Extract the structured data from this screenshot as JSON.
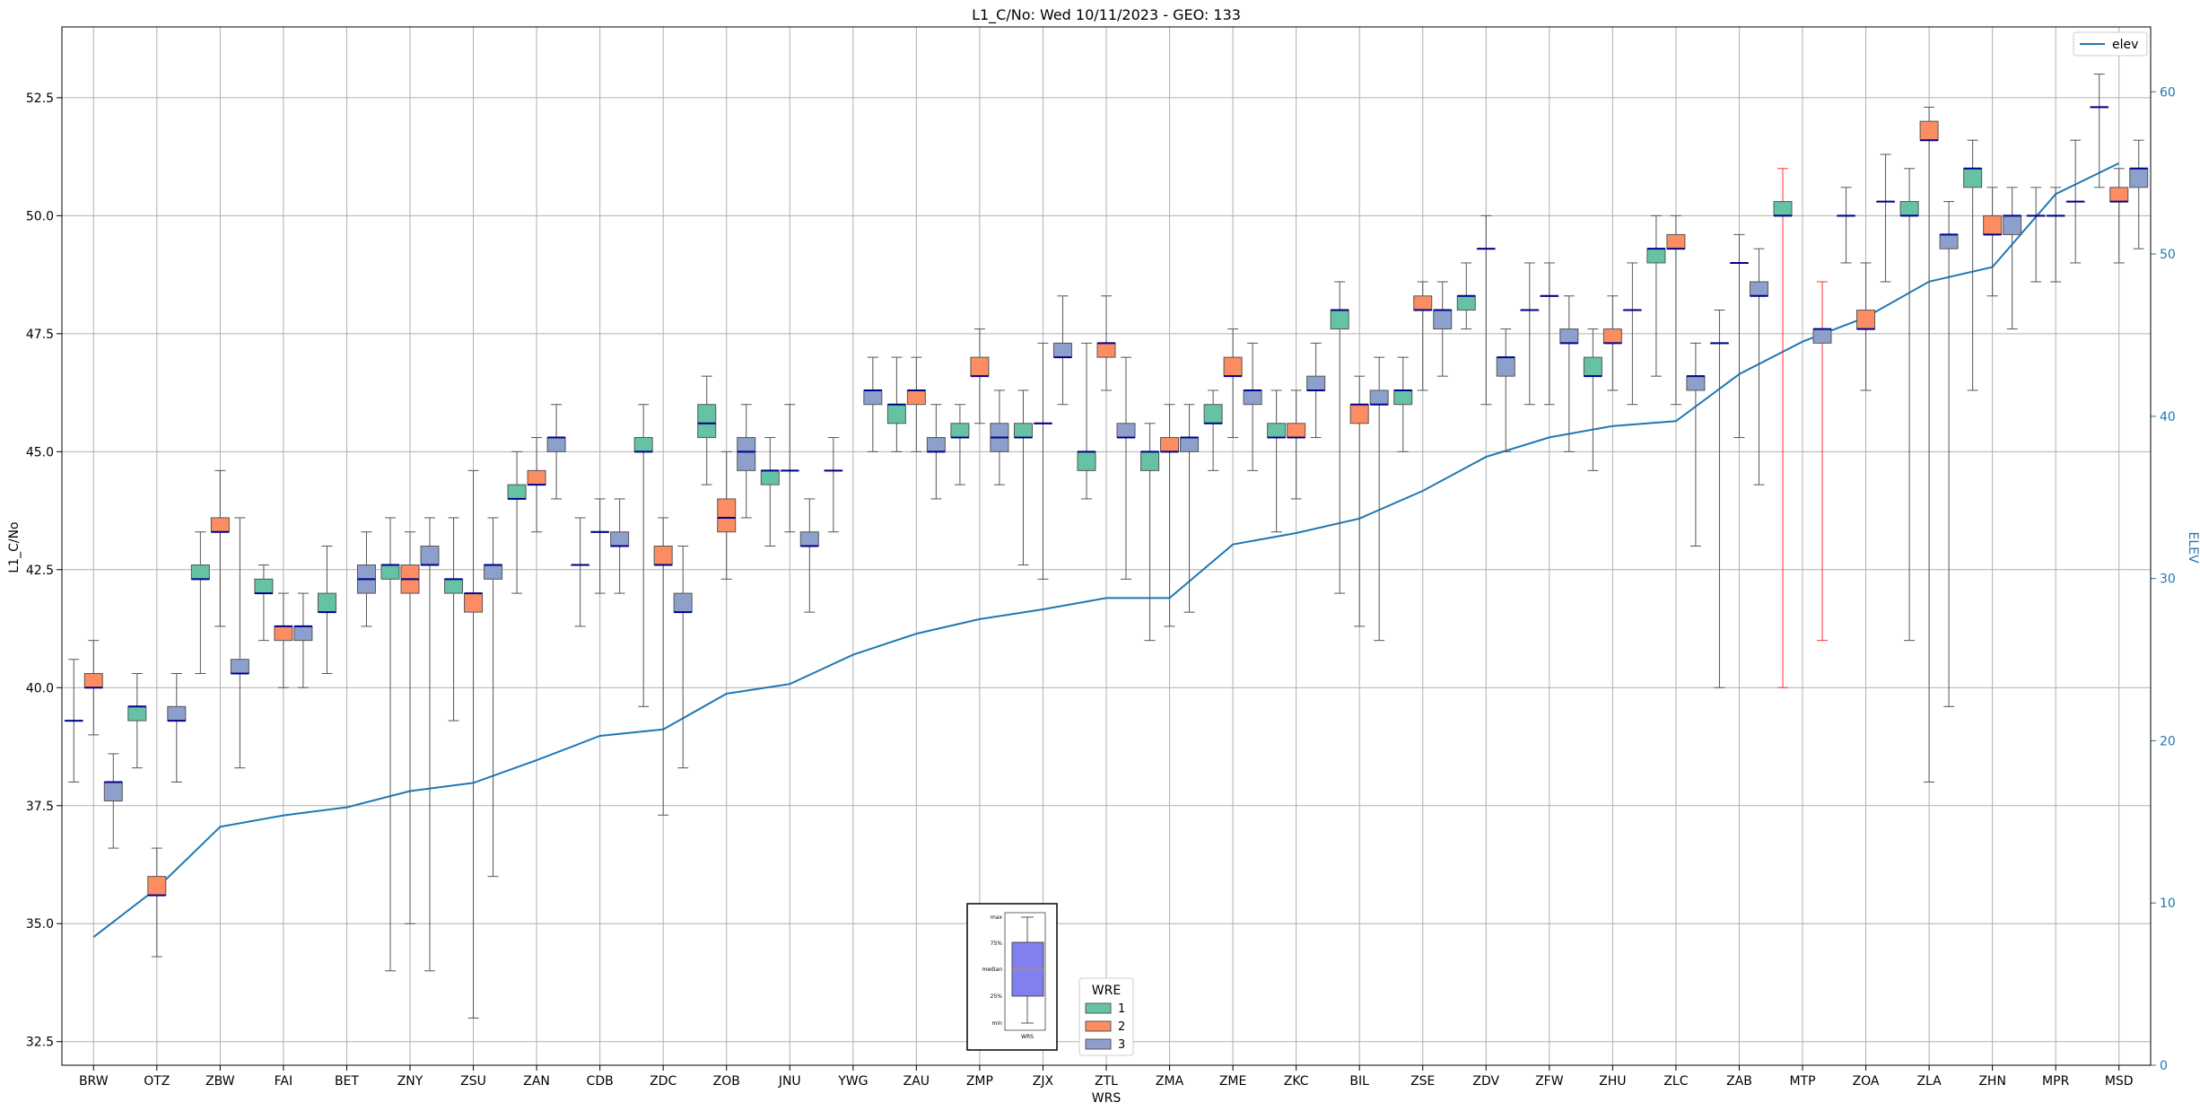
{
  "chart_data": {
    "type": "box",
    "title": "L1_C/No: Wed 10/11/2023 - GEO: 133",
    "xlabel": "WRS",
    "ylabel": "L1_C/No",
    "y2label": "ELEV",
    "ylim": [
      32.0,
      54.0
    ],
    "y2lim": [
      0,
      64
    ],
    "yticks": [
      "32.5",
      "35.0",
      "37.5",
      "40.0",
      "42.5",
      "45.0",
      "47.5",
      "50.0",
      "52.5"
    ],
    "y2ticks": [
      "0",
      "10",
      "20",
      "30",
      "40",
      "50",
      "60"
    ],
    "grid": true,
    "categories": [
      "BRW",
      "OTZ",
      "ZBW",
      "FAI",
      "BET",
      "ZNY",
      "ZSU",
      "ZAN",
      "CDB",
      "ZDC",
      "ZOB",
      "JNU",
      "YWG",
      "ZAU",
      "ZMP",
      "ZJX",
      "ZTL",
      "ZMA",
      "ZME",
      "ZKC",
      "BIL",
      "ZSE",
      "ZDV",
      "ZFW",
      "ZHU",
      "ZLC",
      "ZAB",
      "MTP",
      "ZOA",
      "ZLA",
      "ZHN",
      "MPR",
      "MSD"
    ],
    "box_legend": {
      "title": "WRE",
      "entries": [
        {
          "label": "1",
          "color": "#66c2a5"
        },
        {
          "label": "2",
          "color": "#fc8d62"
        },
        {
          "label": "3",
          "color": "#8da0cb"
        }
      ]
    },
    "line_legend": {
      "label": "elev",
      "color": "#1f77b4",
      "position": "top-right"
    },
    "key_inset": {
      "labels": [
        "max",
        "75%",
        "median",
        "25%",
        "min"
      ],
      "xlabel": "WRS"
    },
    "elev": [
      7.9,
      10.9,
      14.7,
      15.4,
      15.9,
      16.9,
      17.4,
      18.8,
      20.3,
      20.7,
      22.9,
      23.5,
      25.3,
      26.6,
      27.5,
      28.1,
      28.8,
      28.8,
      32.1,
      32.8,
      33.7,
      35.4,
      37.5,
      38.7,
      39.4,
      39.7,
      42.6,
      44.6,
      46.1,
      48.3,
      49.2,
      53.7,
      55.6
    ],
    "boxes": [
      {
        "wrs": "BRW",
        "wre": 1,
        "min": 38.0,
        "q1": 39.3,
        "med": 39.3,
        "q3": 39.3,
        "max": 40.6
      },
      {
        "wrs": "BRW",
        "wre": 2,
        "min": 39.0,
        "q1": 40.0,
        "med": 40.0,
        "q3": 40.3,
        "max": 41.0
      },
      {
        "wrs": "BRW",
        "wre": 3,
        "min": 36.6,
        "q1": 37.6,
        "med": 38.0,
        "q3": 38.0,
        "max": 38.6
      },
      {
        "wrs": "OTZ",
        "wre": 1,
        "min": 38.3,
        "q1": 39.3,
        "med": 39.6,
        "q3": 39.6,
        "max": 40.3
      },
      {
        "wrs": "OTZ",
        "wre": 2,
        "min": 34.3,
        "q1": 35.6,
        "med": 35.6,
        "q3": 36.0,
        "max": 36.6
      },
      {
        "wrs": "OTZ",
        "wre": 3,
        "min": 38.0,
        "q1": 39.3,
        "med": 39.3,
        "q3": 39.6,
        "max": 40.3
      },
      {
        "wrs": "ZBW",
        "wre": 1,
        "min": 40.3,
        "q1": 42.3,
        "med": 42.3,
        "q3": 42.6,
        "max": 43.3
      },
      {
        "wrs": "ZBW",
        "wre": 2,
        "min": 41.3,
        "q1": 43.3,
        "med": 43.3,
        "q3": 43.6,
        "max": 44.6
      },
      {
        "wrs": "ZBW",
        "wre": 3,
        "min": 38.3,
        "q1": 40.3,
        "med": 40.3,
        "q3": 40.6,
        "max": 43.6
      },
      {
        "wrs": "FAI",
        "wre": 1,
        "min": 41.0,
        "q1": 42.0,
        "med": 42.0,
        "q3": 42.3,
        "max": 42.6
      },
      {
        "wrs": "FAI",
        "wre": 2,
        "min": 40.0,
        "q1": 41.0,
        "med": 41.3,
        "q3": 41.3,
        "max": 42.0
      },
      {
        "wrs": "FAI",
        "wre": 3,
        "min": 40.0,
        "q1": 41.0,
        "med": 41.3,
        "q3": 41.3,
        "max": 42.0
      },
      {
        "wrs": "BET",
        "wre": 1,
        "min": 40.3,
        "q1": 41.6,
        "med": 41.6,
        "q3": 42.0,
        "max": 43.0
      },
      {
        "wrs": "BET",
        "wre": 3,
        "min": 41.3,
        "q1": 42.0,
        "med": 42.3,
        "q3": 42.6,
        "max": 43.3
      },
      {
        "wrs": "ZNY",
        "wre": 1,
        "min": 34.0,
        "q1": 42.3,
        "med": 42.6,
        "q3": 42.6,
        "max": 43.6
      },
      {
        "wrs": "ZNY",
        "wre": 2,
        "min": 35.0,
        "q1": 42.0,
        "med": 42.3,
        "q3": 42.6,
        "max": 43.3
      },
      {
        "wrs": "ZNY",
        "wre": 3,
        "min": 34.0,
        "q1": 42.6,
        "med": 42.6,
        "q3": 43.0,
        "max": 43.6
      },
      {
        "wrs": "ZSU",
        "wre": 1,
        "min": 39.3,
        "q1": 42.0,
        "med": 42.3,
        "q3": 42.3,
        "max": 43.6
      },
      {
        "wrs": "ZSU",
        "wre": 2,
        "min": 33.0,
        "q1": 41.6,
        "med": 42.0,
        "q3": 42.0,
        "max": 44.6
      },
      {
        "wrs": "ZSU",
        "wre": 3,
        "min": 36.0,
        "q1": 42.3,
        "med": 42.6,
        "q3": 42.6,
        "max": 43.6
      },
      {
        "wrs": "ZAN",
        "wre": 1,
        "min": 42.0,
        "q1": 44.0,
        "med": 44.0,
        "q3": 44.3,
        "max": 45.0
      },
      {
        "wrs": "ZAN",
        "wre": 2,
        "min": 43.3,
        "q1": 44.3,
        "med": 44.3,
        "q3": 44.6,
        "max": 45.3
      },
      {
        "wrs": "ZAN",
        "wre": 3,
        "min": 44.0,
        "q1": 45.0,
        "med": 45.3,
        "q3": 45.3,
        "max": 46.0
      },
      {
        "wrs": "CDB",
        "wre": 1,
        "min": 41.3,
        "q1": 42.6,
        "med": 42.6,
        "q3": 42.6,
        "max": 43.6
      },
      {
        "wrs": "CDB",
        "wre": 2,
        "min": 42.0,
        "q1": 43.3,
        "med": 43.3,
        "q3": 43.3,
        "max": 44.0
      },
      {
        "wrs": "CDB",
        "wre": 3,
        "min": 42.0,
        "q1": 43.0,
        "med": 43.0,
        "q3": 43.3,
        "max": 44.0
      },
      {
        "wrs": "ZDC",
        "wre": 1,
        "min": 39.6,
        "q1": 45.0,
        "med": 45.0,
        "q3": 45.3,
        "max": 46.0
      },
      {
        "wrs": "ZDC",
        "wre": 2,
        "min": 37.3,
        "q1": 42.6,
        "med": 42.6,
        "q3": 43.0,
        "max": 43.6
      },
      {
        "wrs": "ZDC",
        "wre": 3,
        "min": 38.3,
        "q1": 41.6,
        "med": 41.6,
        "q3": 42.0,
        "max": 43.0
      },
      {
        "wrs": "ZOB",
        "wre": 1,
        "min": 44.3,
        "q1": 45.3,
        "med": 45.6,
        "q3": 46.0,
        "max": 46.6
      },
      {
        "wrs": "ZOB",
        "wre": 2,
        "min": 42.3,
        "q1": 43.3,
        "med": 43.6,
        "q3": 44.0,
        "max": 45.0
      },
      {
        "wrs": "ZOB",
        "wre": 3,
        "min": 43.6,
        "q1": 44.6,
        "med": 45.0,
        "q3": 45.3,
        "max": 46.0
      },
      {
        "wrs": "JNU",
        "wre": 1,
        "min": 43.0,
        "q1": 44.3,
        "med": 44.6,
        "q3": 44.6,
        "max": 45.3
      },
      {
        "wrs": "JNU",
        "wre": 2,
        "min": 43.3,
        "q1": 44.6,
        "med": 44.6,
        "q3": 44.6,
        "max": 46.0
      },
      {
        "wrs": "JNU",
        "wre": 3,
        "min": 41.6,
        "q1": 43.0,
        "med": 43.0,
        "q3": 43.3,
        "max": 44.0
      },
      {
        "wrs": "YWG",
        "wre": 1,
        "min": 43.3,
        "q1": 44.6,
        "med": 44.6,
        "q3": 44.6,
        "max": 45.3
      },
      {
        "wrs": "ZAU",
        "wre": 1,
        "min": 45.0,
        "q1": 45.6,
        "med": 46.0,
        "q3": 46.0,
        "max": 47.0
      },
      {
        "wrs": "ZAU",
        "wre": 2,
        "min": 45.0,
        "q1": 46.0,
        "med": 46.3,
        "q3": 46.3,
        "max": 47.0
      },
      {
        "wrs": "ZAU",
        "wre": 3,
        "min": 44.0,
        "q1": 45.0,
        "med": 45.0,
        "q3": 45.3,
        "max": 46.0
      },
      {
        "wrs": "YWG",
        "wre": 3,
        "min": 45.0,
        "q1": 46.0,
        "med": 46.3,
        "q3": 46.3,
        "max": 47.0
      },
      {
        "wrs": "ZMP",
        "wre": 1,
        "min": 44.3,
        "q1": 45.3,
        "med": 45.3,
        "q3": 45.6,
        "max": 46.0
      },
      {
        "wrs": "ZMP",
        "wre": 2,
        "min": 45.6,
        "q1": 46.6,
        "med": 46.6,
        "q3": 47.0,
        "max": 47.6
      },
      {
        "wrs": "ZMP",
        "wre": 3,
        "min": 44.3,
        "q1": 45.0,
        "med": 45.3,
        "q3": 45.6,
        "max": 46.3
      },
      {
        "wrs": "ZJX",
        "wre": 1,
        "min": 42.6,
        "q1": 45.3,
        "med": 45.3,
        "q3": 45.6,
        "max": 46.3
      },
      {
        "wrs": "ZJX",
        "wre": 2,
        "min": 42.3,
        "q1": 45.6,
        "med": 45.6,
        "q3": 45.6,
        "max": 47.3
      },
      {
        "wrs": "ZJX",
        "wre": 3,
        "min": 46.0,
        "q1": 47.0,
        "med": 47.0,
        "q3": 47.3,
        "max": 48.3
      },
      {
        "wrs": "ZTL",
        "wre": 1,
        "min": 44.0,
        "q1": 44.6,
        "med": 45.0,
        "q3": 45.0,
        "max": 47.3
      },
      {
        "wrs": "ZTL",
        "wre": 2,
        "min": 46.3,
        "q1": 47.0,
        "med": 47.3,
        "q3": 47.3,
        "max": 48.3
      },
      {
        "wrs": "ZTL",
        "wre": 3,
        "min": 42.3,
        "q1": 45.3,
        "med": 45.3,
        "q3": 45.6,
        "max": 47.0
      },
      {
        "wrs": "ZMA",
        "wre": 1,
        "min": 41.0,
        "q1": 44.6,
        "med": 45.0,
        "q3": 45.0,
        "max": 45.6
      },
      {
        "wrs": "ZMA",
        "wre": 2,
        "min": 41.3,
        "q1": 45.0,
        "med": 45.0,
        "q3": 45.3,
        "max": 46.0
      },
      {
        "wrs": "ZMA",
        "wre": 3,
        "min": 41.6,
        "q1": 45.0,
        "med": 45.3,
        "q3": 45.3,
        "max": 46.0
      },
      {
        "wrs": "ZME",
        "wre": 1,
        "min": 44.6,
        "q1": 45.6,
        "med": 45.6,
        "q3": 46.0,
        "max": 46.3
      },
      {
        "wrs": "ZME",
        "wre": 2,
        "min": 45.3,
        "q1": 46.6,
        "med": 46.6,
        "q3": 47.0,
        "max": 47.6
      },
      {
        "wrs": "ZME",
        "wre": 3,
        "min": 44.6,
        "q1": 46.0,
        "med": 46.3,
        "q3": 46.3,
        "max": 47.3
      },
      {
        "wrs": "ZKC",
        "wre": 1,
        "min": 43.3,
        "q1": 45.3,
        "med": 45.3,
        "q3": 45.6,
        "max": 46.3
      },
      {
        "wrs": "ZKC",
        "wre": 2,
        "min": 44.0,
        "q1": 45.3,
        "med": 45.3,
        "q3": 45.6,
        "max": 46.3
      },
      {
        "wrs": "ZKC",
        "wre": 3,
        "min": 45.3,
        "q1": 46.3,
        "med": 46.3,
        "q3": 46.6,
        "max": 47.3
      },
      {
        "wrs": "BIL",
        "wre": 1,
        "min": 42.0,
        "q1": 47.6,
        "med": 48.0,
        "q3": 48.0,
        "max": 48.6
      },
      {
        "wrs": "BIL",
        "wre": 2,
        "min": 41.3,
        "q1": 45.6,
        "med": 46.0,
        "q3": 46.0,
        "max": 46.6
      },
      {
        "wrs": "BIL",
        "wre": 3,
        "min": 41.0,
        "q1": 46.0,
        "med": 46.0,
        "q3": 46.3,
        "max": 47.0
      },
      {
        "wrs": "ZSE",
        "wre": 1,
        "min": 45.0,
        "q1": 46.0,
        "med": 46.3,
        "q3": 46.3,
        "max": 47.0
      },
      {
        "wrs": "ZSE",
        "wre": 2,
        "min": 46.3,
        "q1": 48.0,
        "med": 48.0,
        "q3": 48.3,
        "max": 48.6
      },
      {
        "wrs": "ZSE",
        "wre": 3,
        "min": 46.6,
        "q1": 47.6,
        "med": 48.0,
        "q3": 48.0,
        "max": 48.6
      },
      {
        "wrs": "ZDV",
        "wre": 1,
        "min": 47.6,
        "q1": 48.0,
        "med": 48.3,
        "q3": 48.3,
        "max": 49.0
      },
      {
        "wrs": "ZDV",
        "wre": 2,
        "min": 46.0,
        "q1": 49.3,
        "med": 49.3,
        "q3": 49.3,
        "max": 50.0
      },
      {
        "wrs": "ZDV",
        "wre": 3,
        "min": 45.0,
        "q1": 46.6,
        "med": 47.0,
        "q3": 47.0,
        "max": 47.6
      },
      {
        "wrs": "ZFW",
        "wre": 1,
        "min": 46.0,
        "q1": 48.0,
        "med": 48.0,
        "q3": 48.0,
        "max": 49.0
      },
      {
        "wrs": "ZFW",
        "wre": 2,
        "min": 46.0,
        "q1": 48.3,
        "med": 48.3,
        "q3": 48.3,
        "max": 49.0
      },
      {
        "wrs": "ZFW",
        "wre": 3,
        "min": 45.0,
        "q1": 47.3,
        "med": 47.3,
        "q3": 47.6,
        "max": 48.3
      },
      {
        "wrs": "ZHU",
        "wre": 1,
        "min": 44.6,
        "q1": 46.6,
        "med": 46.6,
        "q3": 47.0,
        "max": 47.6
      },
      {
        "wrs": "ZHU",
        "wre": 2,
        "min": 46.3,
        "q1": 47.3,
        "med": 47.3,
        "q3": 47.6,
        "max": 48.3
      },
      {
        "wrs": "ZHU",
        "wre": 3,
        "min": 46.0,
        "q1": 48.0,
        "med": 48.0,
        "q3": 48.0,
        "max": 49.0
      },
      {
        "wrs": "ZLC",
        "wre": 1,
        "min": 46.6,
        "q1": 49.0,
        "med": 49.3,
        "q3": 49.3,
        "max": 50.0
      },
      {
        "wrs": "ZLC",
        "wre": 2,
        "min": 46.0,
        "q1": 49.3,
        "med": 49.3,
        "q3": 49.6,
        "max": 50.0
      },
      {
        "wrs": "ZLC",
        "wre": 3,
        "min": 43.0,
        "q1": 46.3,
        "med": 46.6,
        "q3": 46.6,
        "max": 47.3
      },
      {
        "wrs": "ZAB",
        "wre": 1,
        "min": 40.0,
        "q1": 47.3,
        "med": 47.3,
        "q3": 47.3,
        "max": 48.0
      },
      {
        "wrs": "ZAB",
        "wre": 2,
        "min": 45.3,
        "q1": 49.0,
        "med": 49.0,
        "q3": 49.0,
        "max": 49.6
      },
      {
        "wrs": "ZAB",
        "wre": 3,
        "min": 44.3,
        "q1": 48.3,
        "med": 48.3,
        "q3": 48.6,
        "max": 49.3
      },
      {
        "wrs": "MTP",
        "wre": 1,
        "min": 40.0,
        "q1": 50.0,
        "med": 50.0,
        "q3": 50.3,
        "max": 51.0,
        "outlier": true
      },
      {
        "wrs": "MTP",
        "wre": 3,
        "min": 41.0,
        "q1": 47.3,
        "med": 47.6,
        "q3": 47.6,
        "max": 48.6,
        "outlier": true
      },
      {
        "wrs": "ZOA",
        "wre": 1,
        "min": 49.0,
        "q1": 50.0,
        "med": 50.0,
        "q3": 50.0,
        "max": 50.6
      },
      {
        "wrs": "ZOA",
        "wre": 2,
        "min": 46.3,
        "q1": 47.6,
        "med": 47.6,
        "q3": 48.0,
        "max": 49.0
      },
      {
        "wrs": "ZOA",
        "wre": 3,
        "min": 48.6,
        "q1": 50.3,
        "med": 50.3,
        "q3": 50.3,
        "max": 51.3
      },
      {
        "wrs": "ZLA",
        "wre": 1,
        "min": 41.0,
        "q1": 50.0,
        "med": 50.0,
        "q3": 50.3,
        "max": 51.0
      },
      {
        "wrs": "ZLA",
        "wre": 2,
        "min": 38.0,
        "q1": 51.6,
        "med": 51.6,
        "q3": 52.0,
        "max": 52.3
      },
      {
        "wrs": "ZLA",
        "wre": 3,
        "min": 39.6,
        "q1": 49.3,
        "med": 49.6,
        "q3": 49.6,
        "max": 50.3
      },
      {
        "wrs": "ZHN",
        "wre": 1,
        "min": 46.3,
        "q1": 50.6,
        "med": 51.0,
        "q3": 51.0,
        "max": 51.6
      },
      {
        "wrs": "ZHN",
        "wre": 2,
        "min": 48.3,
        "q1": 49.6,
        "med": 49.6,
        "q3": 50.0,
        "max": 50.6
      },
      {
        "wrs": "ZHN",
        "wre": 3,
        "min": 47.6,
        "q1": 49.6,
        "med": 50.0,
        "q3": 50.0,
        "max": 50.6
      },
      {
        "wrs": "MPR",
        "wre": 1,
        "min": 48.6,
        "q1": 50.0,
        "med": 50.0,
        "q3": 50.0,
        "max": 50.6
      },
      {
        "wrs": "MPR",
        "wre": 2,
        "min": 48.6,
        "q1": 50.0,
        "med": 50.0,
        "q3": 50.0,
        "max": 50.6
      },
      {
        "wrs": "MPR",
        "wre": 3,
        "min": 49.0,
        "q1": 50.3,
        "med": 50.3,
        "q3": 50.3,
        "max": 51.6
      },
      {
        "wrs": "MSD",
        "wre": 1,
        "min": 50.6,
        "q1": 52.3,
        "med": 52.3,
        "q3": 52.3,
        "max": 53.0
      },
      {
        "wrs": "MSD",
        "wre": 2,
        "min": 49.0,
        "q1": 50.3,
        "med": 50.3,
        "q3": 50.6,
        "max": 51.0
      },
      {
        "wrs": "MSD",
        "wre": 3,
        "min": 49.3,
        "q1": 50.6,
        "med": 51.0,
        "q3": 51.0,
        "max": 51.6
      }
    ]
  }
}
